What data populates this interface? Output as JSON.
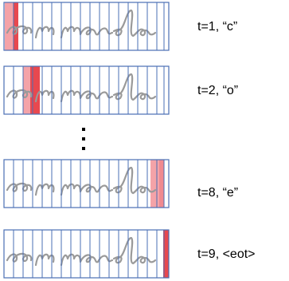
{
  "rows": [
    {
      "label": "t=1, “c”"
    },
    {
      "label": "t=2, “o”"
    },
    {
      "label": "t=8, “e”"
    },
    {
      "label": "t=9, <eot>"
    }
  ]
}
